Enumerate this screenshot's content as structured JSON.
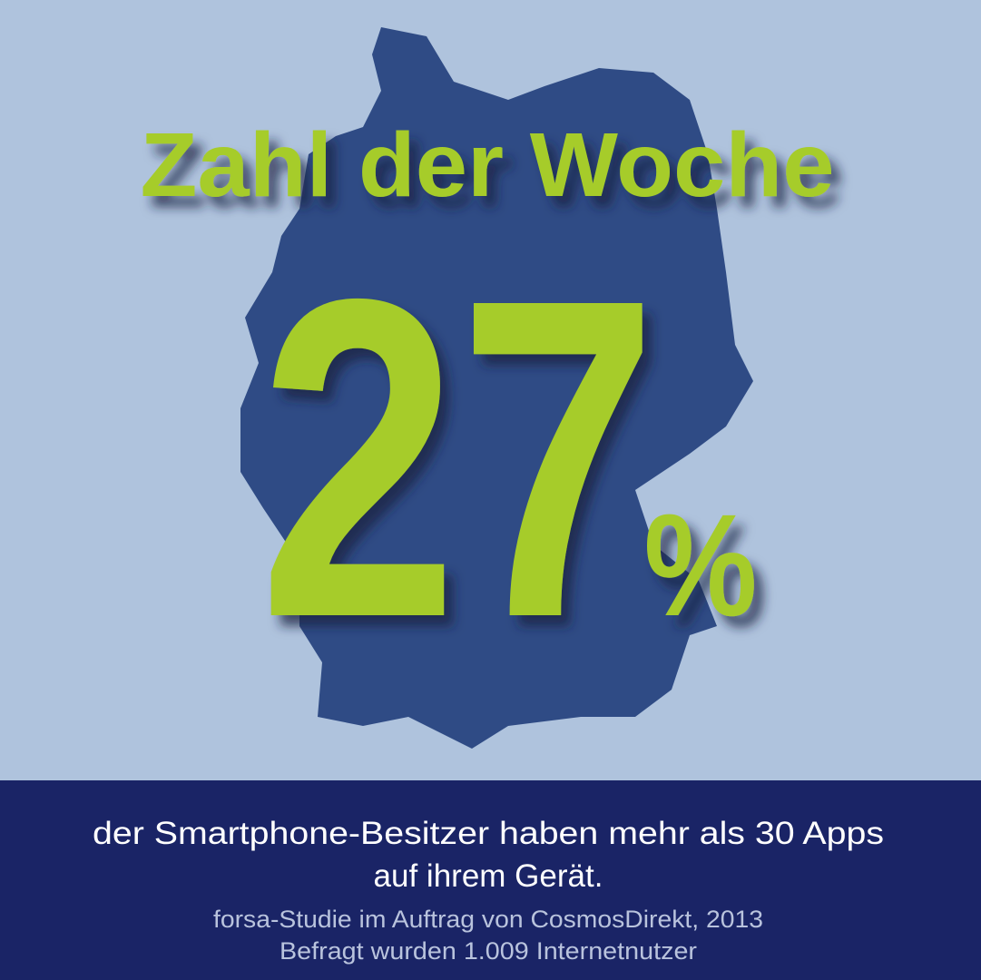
{
  "header": {
    "title": "Zahl der Woche"
  },
  "figure": {
    "number": "27",
    "unit": "%"
  },
  "footer": {
    "statement": [
      "der Smartphone-Besitzer haben mehr als 30 Apps",
      "auf ihrem Gerät."
    ],
    "source": [
      "forsa-Studie im Auftrag von CosmosDirekt, 2013",
      "Befragt wurden 1.009 Internetnutzer"
    ]
  }
}
